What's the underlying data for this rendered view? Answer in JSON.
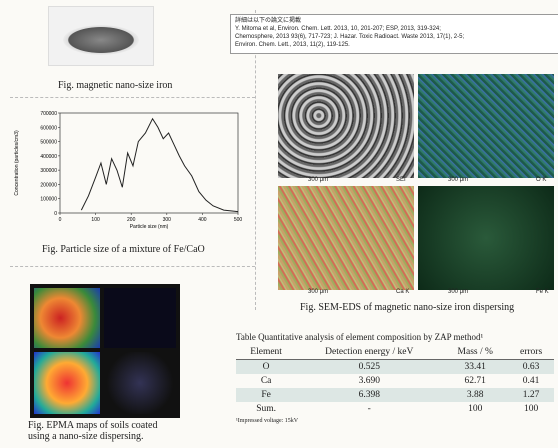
{
  "photo_caption": "Fig. magnetic nano-size iron",
  "references": {
    "heading": "詳細は以下の論文に掲載",
    "lines": [
      "Y. Mitoma et al, Environ. Chem. Lett. 2013, 10, 201-207; ESP, 2013, 319-324;",
      "Chemosphere, 2013 93(6), 717-723; J. Hazar. Toxic Radioact. Waste 2013, 17(1), 2-5;",
      "Environ. Chem. Lett., 2013, 11(2), 119-125."
    ]
  },
  "particle_chart": {
    "type": "line",
    "x_label": "Particle size (nm)",
    "y_label": "Concentration (particles/cm3)",
    "caption": "Fig. Particle size of a mixture of Fe/CaO",
    "x": [
      60,
      80,
      100,
      115,
      130,
      145,
      160,
      175,
      190,
      205,
      220,
      240,
      260,
      275,
      290,
      305,
      320,
      335,
      350,
      370,
      390,
      410,
      430,
      460,
      500
    ],
    "values": [
      20000,
      120000,
      250000,
      350000,
      200000,
      380000,
      300000,
      180000,
      420000,
      330000,
      500000,
      560000,
      660000,
      600000,
      520000,
      560000,
      480000,
      400000,
      330000,
      260000,
      150000,
      90000,
      50000,
      20000,
      10000
    ],
    "xlim": [
      0,
      500
    ],
    "ylim": [
      0,
      700000
    ],
    "xticks": [
      0,
      100,
      200,
      300,
      400,
      500
    ],
    "yticks": [
      0,
      100000,
      200000,
      300000,
      400000,
      500000,
      600000,
      700000
    ],
    "color": "#222"
  },
  "sem": {
    "panels": [
      {
        "scale": "300 μm",
        "label": "SEI"
      },
      {
        "scale": "300 μm",
        "label": "O K"
      },
      {
        "scale": "300 μm",
        "label": "Ca K"
      },
      {
        "scale": "300 μm",
        "label": "Fe K"
      }
    ],
    "caption": "Fig. SEM-EDS of magnetic nano-size iron dispersing"
  },
  "epma": {
    "caption": [
      "Fig. EPMA maps of soils coated",
      "using a nano-size dispersing."
    ]
  },
  "table": {
    "title": "Table Quantitative analysis of element composition by ZAP method¹",
    "header": [
      "Element",
      "Detection energy / keV",
      "Mass / %",
      "errors"
    ],
    "rows": [
      [
        "O",
        "0.525",
        "33.41",
        "0.63"
      ],
      [
        "Ca",
        "3.690",
        "62.71",
        "0.41"
      ],
      [
        "Fe",
        "6.398",
        "3.88",
        "1.27"
      ],
      [
        "Sum.",
        "-",
        "100",
        "100"
      ]
    ],
    "footnote": "¹Impressed voltage: 15kV"
  }
}
